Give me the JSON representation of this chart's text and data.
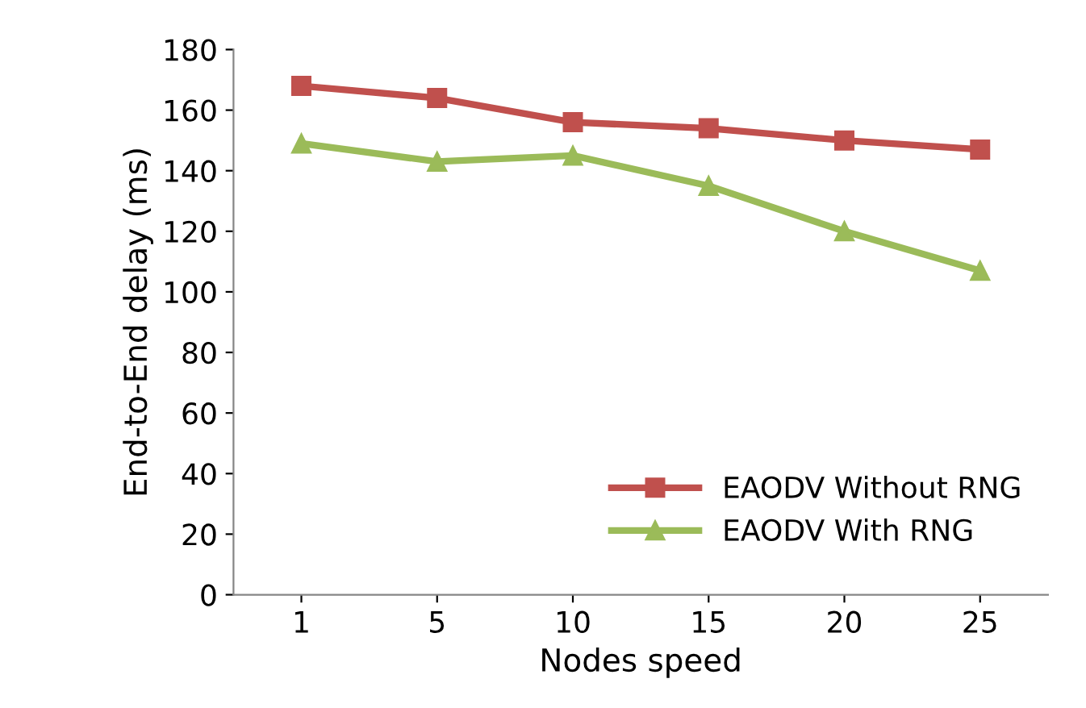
{
  "chart_data": {
    "type": "line",
    "xlabel": "Nodes speed",
    "ylabel": "End-to-End delay (ms)",
    "categories": [
      "1",
      "5",
      "10",
      "15",
      "20",
      "25"
    ],
    "series": [
      {
        "name": "EAODV Without RNG",
        "color": "#c0504d",
        "marker": "square",
        "values": [
          168,
          164,
          156,
          154,
          150,
          147
        ]
      },
      {
        "name": "EAODV With RNG",
        "color": "#9bbb59",
        "marker": "triangle",
        "values": [
          149,
          143,
          145,
          135,
          120,
          107
        ]
      }
    ],
    "ylim": [
      0,
      180
    ],
    "yticks": [
      0,
      20,
      40,
      60,
      80,
      100,
      120,
      140,
      160,
      180
    ],
    "grid": false,
    "legend": "bottom right",
    "line_style": "solid"
  }
}
